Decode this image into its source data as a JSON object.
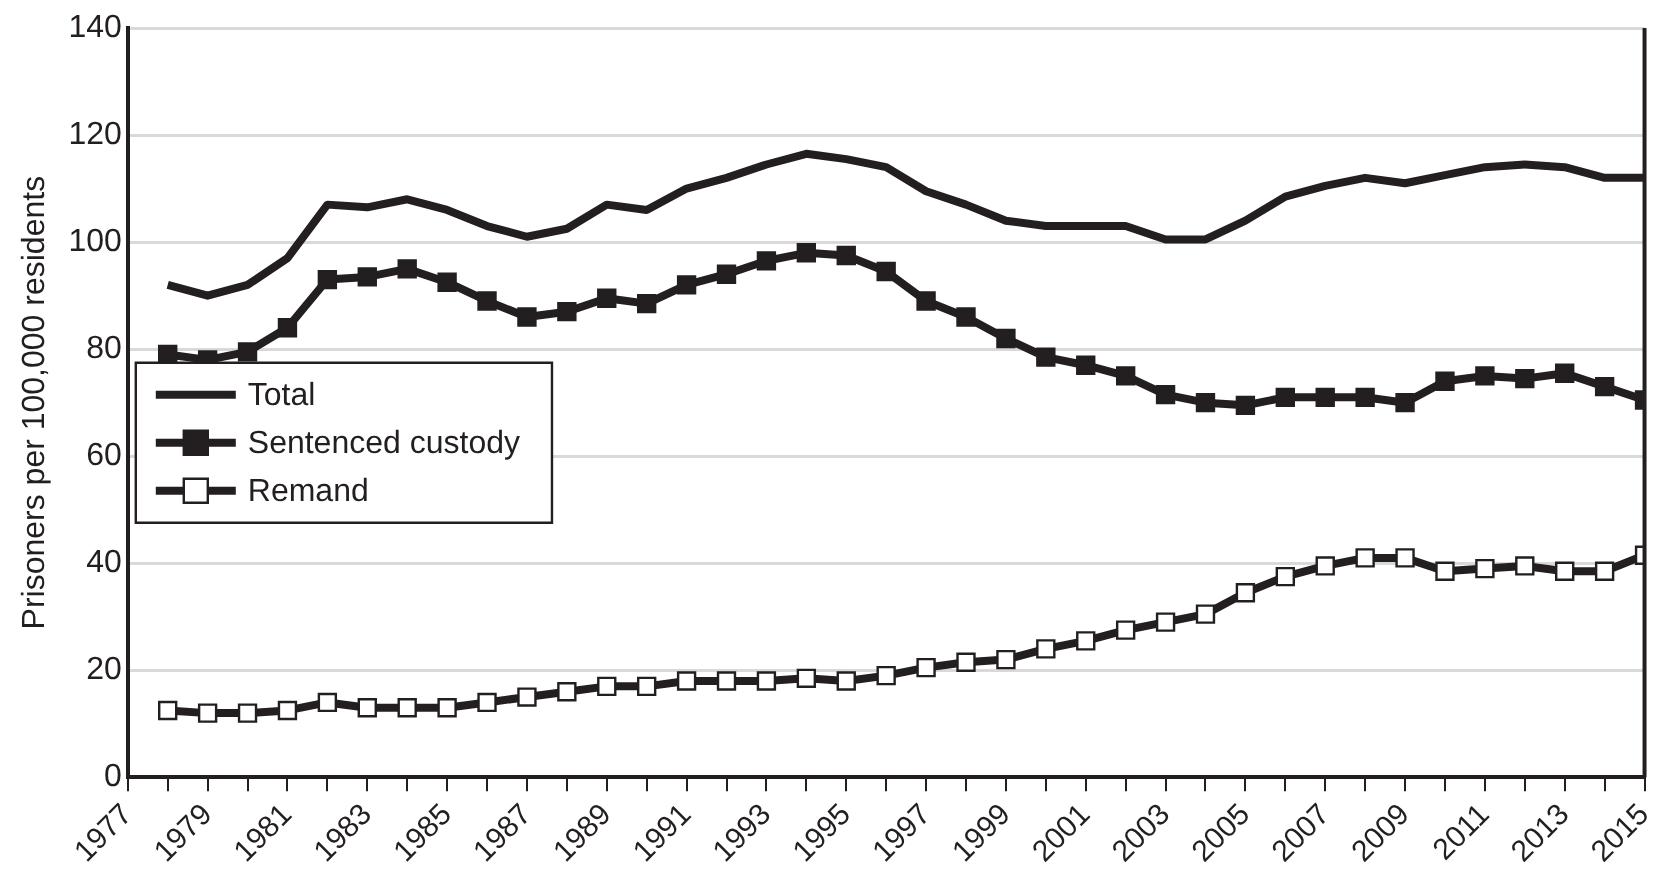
{
  "chart_data": {
    "type": "line",
    "ylabel": "Prisoners per 100,000 residents",
    "x": [
      1978,
      1979,
      1980,
      1981,
      1982,
      1983,
      1984,
      1985,
      1986,
      1987,
      1988,
      1989,
      1990,
      1991,
      1992,
      1993,
      1994,
      1995,
      1996,
      1997,
      1998,
      1999,
      2000,
      2001,
      2002,
      2003,
      2004,
      2005,
      2006,
      2007,
      2008,
      2009,
      2010,
      2011,
      2012,
      2013,
      2014,
      2015
    ],
    "series": [
      {
        "name": "Total",
        "color": "#231f20",
        "marker": "none",
        "values": [
          92,
          90,
          92,
          97,
          107,
          106.5,
          108,
          106,
          103,
          101,
          102.5,
          107,
          106,
          110,
          112,
          114.5,
          116.5,
          115.5,
          114,
          109.5,
          107,
          104,
          103,
          103,
          103,
          100.5,
          100.5,
          104,
          108.5,
          110.5,
          112,
          111,
          112.5,
          114,
          114.5,
          114,
          112,
          112
        ]
      },
      {
        "name": "Sentenced custody",
        "color": "#231f20",
        "marker": "square",
        "values": [
          79,
          78,
          79.5,
          84,
          93,
          93.5,
          95,
          92.5,
          89,
          86,
          87,
          89.5,
          88.5,
          92,
          94,
          96.5,
          98,
          97.5,
          94.5,
          89,
          86,
          82,
          78.5,
          77,
          75,
          71.5,
          70,
          69.5,
          71,
          71,
          71,
          70,
          74,
          75,
          74.5,
          75.5,
          73,
          70.5
        ]
      },
      {
        "name": "Remand",
        "color": "#ffffff",
        "marker": "square",
        "values": [
          12.5,
          12,
          12,
          12.5,
          14,
          13,
          13,
          13,
          14,
          15,
          16,
          17,
          17,
          18,
          18,
          18,
          18.5,
          18,
          19,
          20.5,
          21.5,
          22,
          24,
          25.5,
          27.5,
          29,
          30.5,
          34.5,
          37.5,
          39.5,
          41,
          41,
          38.5,
          39,
          39.5,
          38.5,
          38.5,
          41.5
        ]
      }
    ],
    "xlim": [
      1977,
      2015
    ],
    "xticks": [
      1977,
      {
        "value": 1978,
        "label": null
      },
      1979,
      {
        "value": 1980,
        "label": null
      },
      1981,
      {
        "value": 1982,
        "label": null
      },
      1983,
      {
        "value": 1984,
        "label": null
      },
      1985,
      {
        "value": 1986,
        "label": null
      },
      1987,
      {
        "value": 1988,
        "label": null
      },
      1989,
      {
        "value": 1990,
        "label": null
      },
      1991,
      {
        "value": 1992,
        "label": null
      },
      1993,
      {
        "value": 1994,
        "label": null
      },
      1995,
      {
        "value": 1996,
        "label": null
      },
      1997,
      {
        "value": 1998,
        "label": null
      },
      1999,
      {
        "value": 2000,
        "label": null
      },
      2001,
      {
        "value": 2002,
        "label": null
      },
      2003,
      {
        "value": 2004,
        "label": null
      },
      2005,
      {
        "value": 2006,
        "label": null
      },
      2007,
      {
        "value": 2008,
        "label": null
      },
      2009,
      {
        "value": 2010,
        "label": null
      },
      2011,
      {
        "value": 2012,
        "label": null
      },
      2013,
      {
        "value": 2014,
        "label": null
      },
      2015
    ],
    "ylim": [
      0,
      140
    ],
    "yticks": [
      0,
      20,
      40,
      60,
      80,
      100,
      120,
      140
    ],
    "grid": "y",
    "legend": "left",
    "line_style": "solid"
  }
}
